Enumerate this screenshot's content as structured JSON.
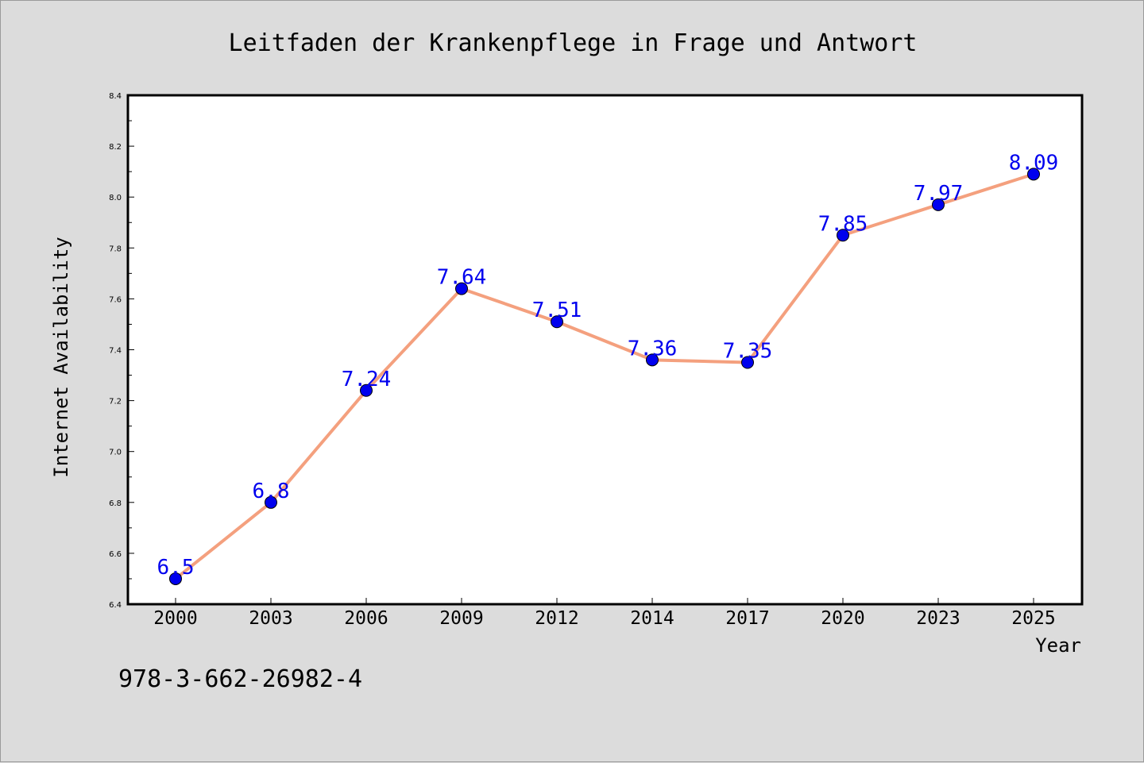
{
  "chart_data": {
    "type": "line",
    "title": "Leitfaden der Krankenpflege in Frage und Antwort",
    "xlabel": "Year",
    "ylabel": "Internet Availability",
    "categories": [
      "2000",
      "2003",
      "2006",
      "2009",
      "2012",
      "2014",
      "2017",
      "2020",
      "2023",
      "2025"
    ],
    "series": [
      {
        "values": [
          6.5,
          6.8,
          7.24,
          7.64,
          7.51,
          7.36,
          7.35,
          7.85,
          7.97,
          8.09
        ]
      }
    ],
    "data_labels": [
      "6.5",
      "6.8",
      "7.24",
      "7.64",
      "7.51",
      "7.36",
      "7.35",
      "7.85",
      "7.97",
      "8.09"
    ],
    "ylim": [
      6.4,
      8.4
    ],
    "yticks": [
      "6.4",
      "6.6",
      "6.8",
      "7.0",
      "7.2",
      "7.4",
      "7.6",
      "7.8",
      "8.0",
      "8.2",
      "8.4"
    ],
    "grid": false,
    "legend": "none",
    "colors": {
      "line": "#f4a07e",
      "marker": "#0000ee",
      "label": "#0000ee",
      "plot_bg": "#ffffff",
      "page_bg": "#dcdcdc"
    }
  },
  "isbn_note": "978-3-662-26982-4"
}
